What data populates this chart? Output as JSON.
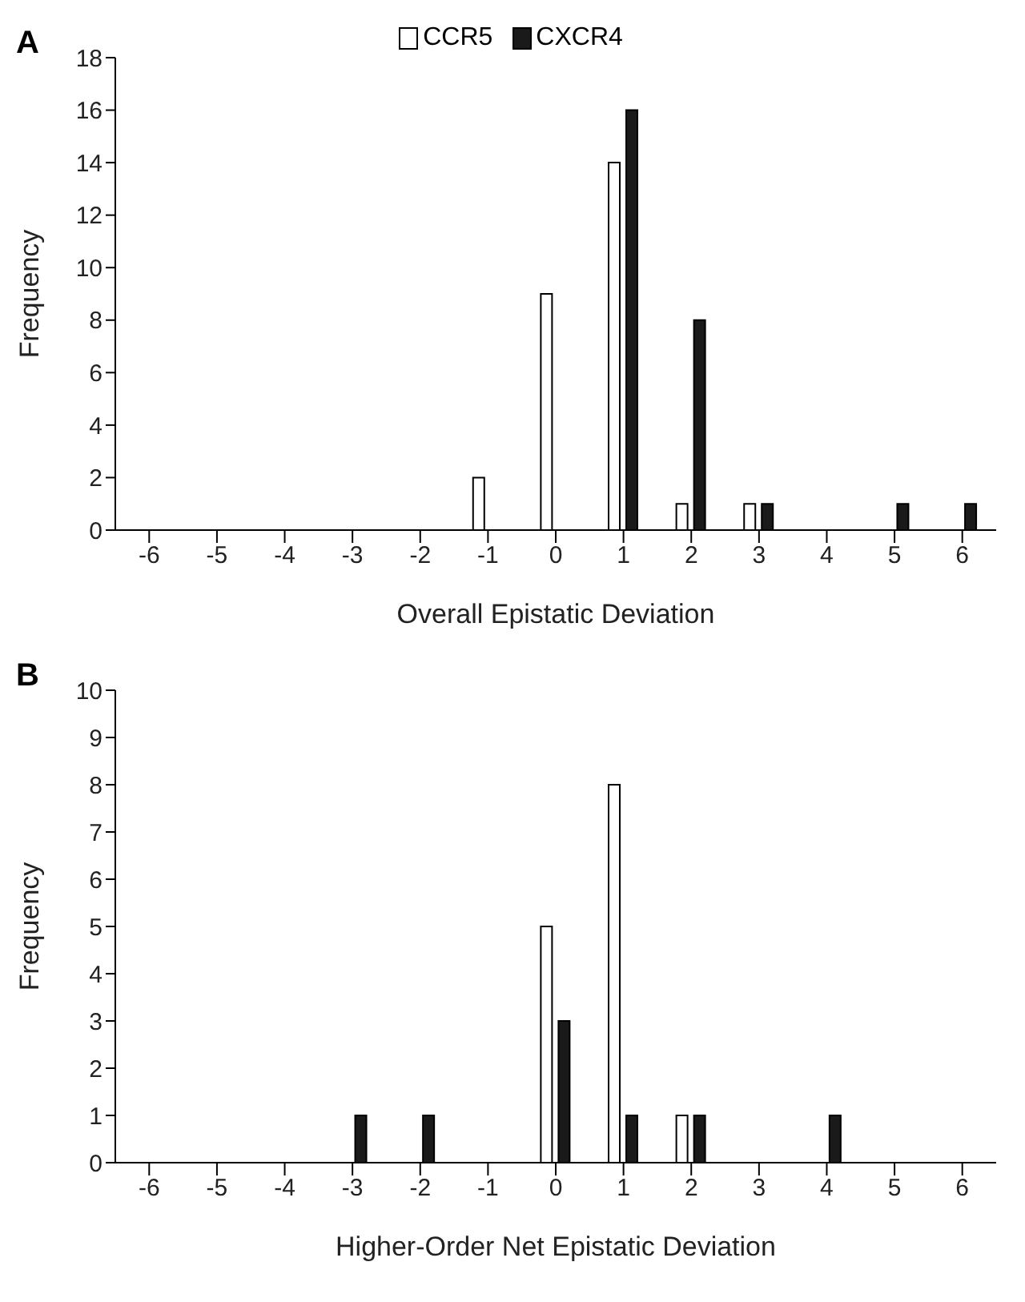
{
  "chart_data": [
    {
      "type": "bar",
      "title": "A",
      "xlabel": "Overall Epistatic Deviation",
      "ylabel": "Frequency",
      "categories": [
        "-6",
        "-5",
        "-4",
        "-3",
        "-2",
        "-1",
        "0",
        "1",
        "2",
        "3",
        "4",
        "5",
        "6"
      ],
      "series": [
        {
          "name": "CCR5",
          "color": "#ffffff",
          "values": [
            0,
            0,
            0,
            0,
            0,
            2,
            9,
            14,
            1,
            1,
            0,
            0,
            0
          ]
        },
        {
          "name": "CXCR4",
          "color": "#1a1a1a",
          "values": [
            0,
            0,
            0,
            0,
            0,
            0,
            0,
            16,
            8,
            1,
            0,
            1,
            1
          ]
        }
      ],
      "ylim": [
        0,
        18
      ],
      "yticks": [
        0,
        2,
        4,
        6,
        8,
        10,
        12,
        14,
        16,
        18
      ],
      "grid": false,
      "legend": "top"
    },
    {
      "type": "bar",
      "title": "B",
      "xlabel": "Higher-Order Net Epistatic Deviation",
      "ylabel": "Frequency",
      "categories": [
        "-6",
        "-5",
        "-4",
        "-3",
        "-2",
        "-1",
        "0",
        "1",
        "2",
        "3",
        "4",
        "5",
        "6"
      ],
      "series": [
        {
          "color": "#ffffff",
          "values": [
            0,
            0,
            0,
            0,
            0,
            0,
            5,
            8,
            1,
            0,
            0,
            0,
            0
          ]
        },
        {
          "color": "#1a1a1a",
          "values": [
            0,
            0,
            0,
            1,
            1,
            0,
            3,
            1,
            1,
            0,
            1,
            0,
            0
          ]
        }
      ],
      "ylim": [
        0,
        10
      ],
      "yticks": [
        0,
        1,
        2,
        3,
        4,
        5,
        6,
        7,
        8,
        9,
        10
      ],
      "grid": false,
      "legend": false
    }
  ]
}
